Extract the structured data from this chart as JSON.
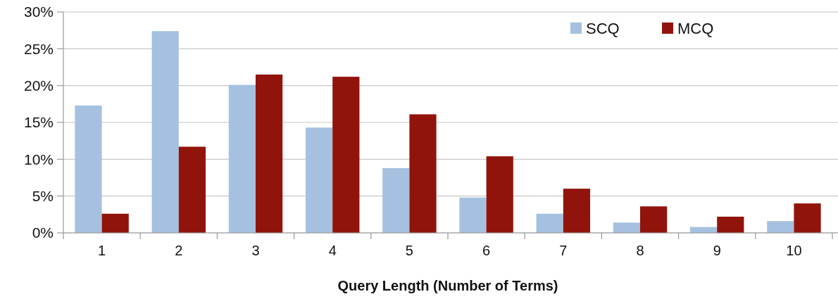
{
  "chart_data": {
    "type": "bar",
    "xlabel": "Query Length (Number of Terms)",
    "categories": [
      "1",
      "2",
      "3",
      "4",
      "5",
      "6",
      "7",
      "8",
      "9",
      "10"
    ],
    "series": [
      {
        "name": "SCQ",
        "color": "#a6c1df",
        "values": [
          17.3,
          27.4,
          20.1,
          14.3,
          8.8,
          4.8,
          2.6,
          1.4,
          0.8,
          1.6
        ]
      },
      {
        "name": "MCQ",
        "color": "#91140c",
        "values": [
          2.6,
          11.7,
          21.5,
          21.2,
          16.1,
          10.4,
          6.0,
          3.6,
          2.2,
          4.0
        ]
      }
    ],
    "ylim": [
      0,
      30
    ],
    "yticks": [
      {
        "value": 0,
        "label": "0%"
      },
      {
        "value": 5,
        "label": "5%"
      },
      {
        "value": 10,
        "label": "10%"
      },
      {
        "value": 15,
        "label": "15%"
      },
      {
        "value": 20,
        "label": "20%"
      },
      {
        "value": 25,
        "label": "25%"
      },
      {
        "value": 30,
        "label": "30%"
      }
    ],
    "grid": "y",
    "legend": "top right"
  }
}
